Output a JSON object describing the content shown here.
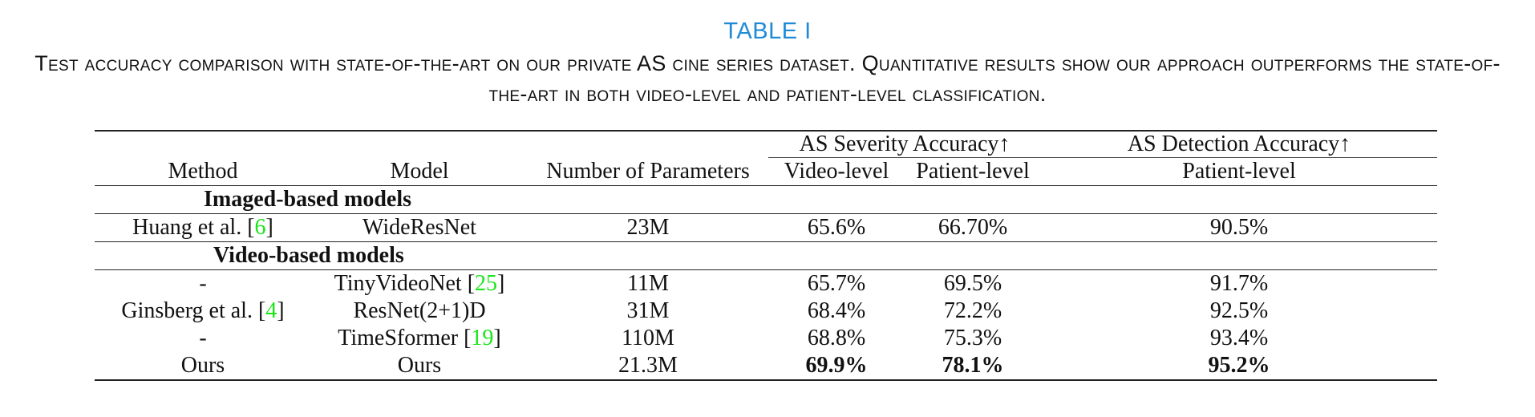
{
  "table_label": "TABLE I",
  "caption": "Test accuracy comparison with state-of-the-art on our private AS cine series dataset. Quantitative results show our approach outperforms the state-of-the-art in both video-level and patient-level classification.",
  "header": {
    "severity_group": "AS Severity Accuracy↑",
    "detection_group": "AS Detection Accuracy↑",
    "method": "Method",
    "model": "Model",
    "params": "Number of Parameters",
    "video_level": "Video-level",
    "patient_level": "Patient-level",
    "det_patient_level": "Patient-level"
  },
  "sections": {
    "image": "Imaged-based models",
    "video": "Video-based models"
  },
  "rows": {
    "huang": {
      "method": "Huang et al. [",
      "ref": "6",
      "method_end": "]",
      "model": "WideResNet",
      "params": "23M",
      "video": "65.6%",
      "patient": "66.70%",
      "detection": "90.5%"
    },
    "tiny": {
      "method": "-",
      "model": "TinyVideoNet [",
      "ref": "25",
      "model_end": "]",
      "params": "11M",
      "video": "65.7%",
      "patient": "69.5%",
      "detection": "91.7%"
    },
    "ginsberg": {
      "method": "Ginsberg et al. [",
      "ref": "4",
      "method_end": "]",
      "model": "ResNet(2+1)D",
      "params": "31M",
      "video": "68.4%",
      "patient": "72.2%",
      "detection": "92.5%"
    },
    "timesformer": {
      "method": "-",
      "model": "TimeSformer [",
      "ref": "19",
      "model_end": "]",
      "params": "110M",
      "video": "68.8%",
      "patient": "75.3%",
      "detection": "93.4%"
    },
    "ours": {
      "method": "Ours",
      "model": "Ours",
      "params": "21.3M",
      "video": "69.9%",
      "patient": "78.1%",
      "detection": "95.2%"
    }
  },
  "colors": {
    "label_blue": "#1f8bd6",
    "ref_green": "#19e619"
  }
}
